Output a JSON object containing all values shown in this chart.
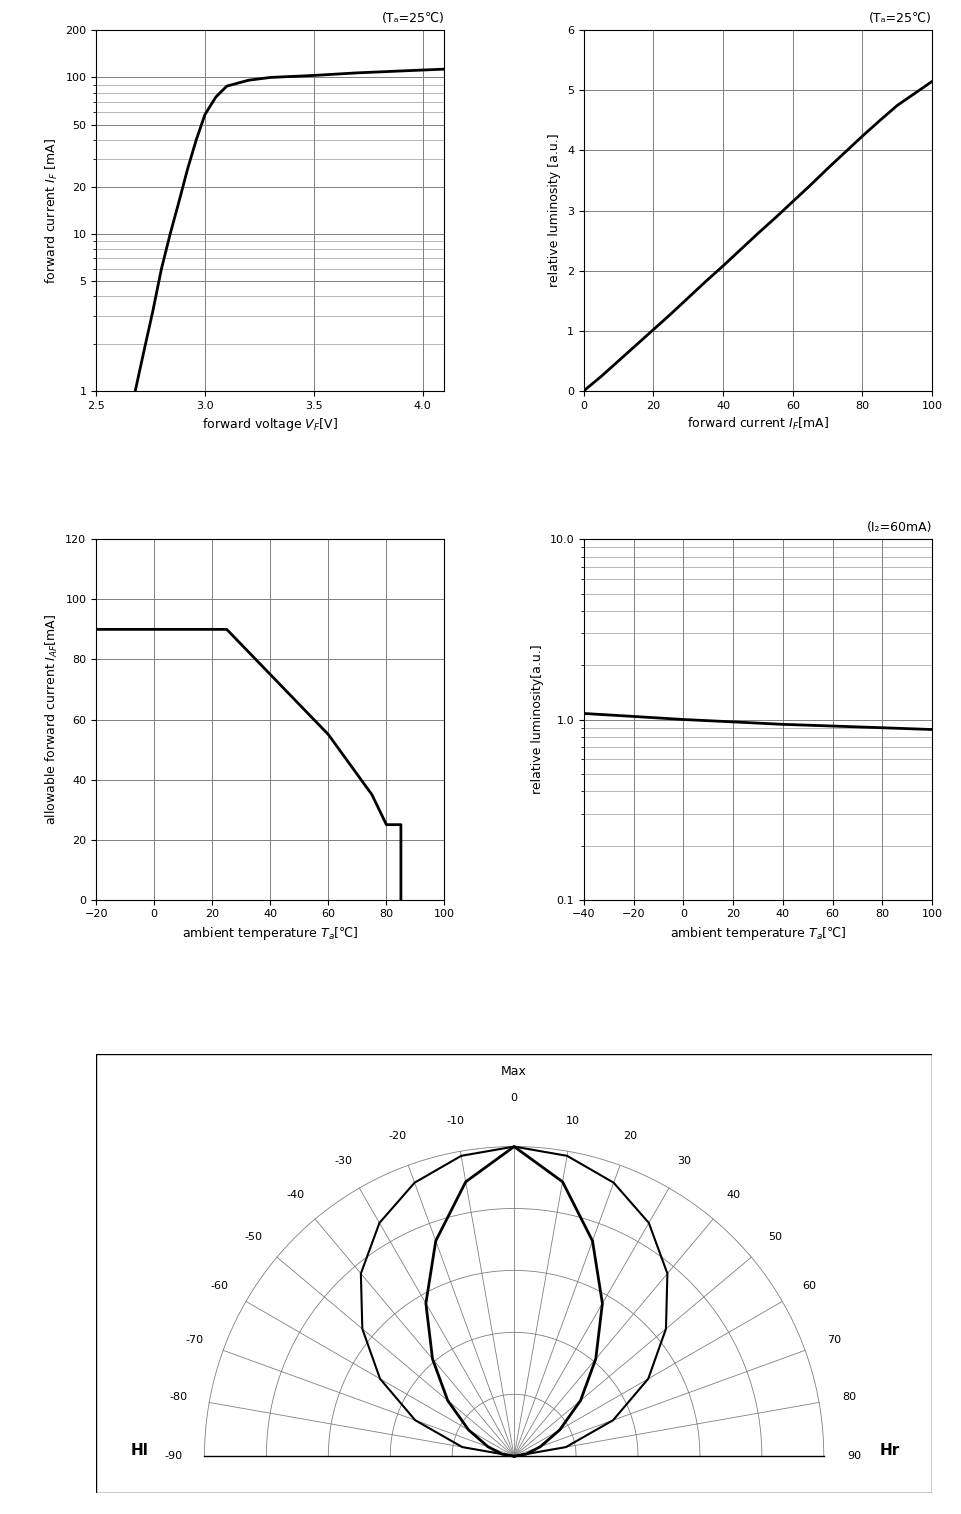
{
  "fig_width": 9.61,
  "fig_height": 15.14,
  "bg_color": "#ffffff",
  "plot1": {
    "title": "(Tₐ=25℃)",
    "xlabel": "forward voltage V₁[V]",
    "ylabel": "forward current I₂ [mA]",
    "xlim": [
      2.5,
      4.1
    ],
    "ylim_log": [
      1,
      200
    ],
    "xticks": [
      2.5,
      3.0,
      3.5,
      4.0
    ],
    "yticks_log": [
      1,
      5,
      10,
      20,
      50,
      100,
      200
    ],
    "curve_x": [
      2.68,
      2.72,
      2.76,
      2.8,
      2.84,
      2.88,
      2.92,
      2.96,
      3.0,
      3.05,
      3.1,
      3.2,
      3.3,
      3.5,
      3.7,
      3.9,
      4.1
    ],
    "curve_y": [
      1.0,
      1.8,
      3.2,
      6.0,
      10.0,
      16.0,
      26.0,
      40.0,
      58.0,
      75.0,
      88.0,
      96.0,
      100.0,
      103.0,
      107.0,
      110.0,
      113.0
    ]
  },
  "plot2": {
    "title": "(Tₐ=25℃)",
    "xlabel": "forward current I₂[mA]",
    "ylabel": "relative luminosity [a.u.]",
    "xlim": [
      0,
      100
    ],
    "ylim": [
      0,
      6.0
    ],
    "xticks": [
      0,
      20,
      40,
      60,
      80,
      100
    ],
    "yticks": [
      0,
      1.0,
      2.0,
      3.0,
      4.0,
      5.0,
      6.0
    ],
    "curve_x": [
      0,
      5,
      10,
      15,
      20,
      25,
      30,
      35,
      40,
      45,
      50,
      55,
      60,
      65,
      70,
      75,
      80,
      85,
      90,
      95,
      100
    ],
    "curve_y": [
      0.0,
      0.24,
      0.5,
      0.76,
      1.02,
      1.28,
      1.55,
      1.82,
      2.08,
      2.35,
      2.62,
      2.88,
      3.15,
      3.42,
      3.7,
      3.97,
      4.24,
      4.5,
      4.75,
      4.95,
      5.15
    ]
  },
  "plot3": {
    "xlabel": "ambient temperature Tₐ[℃]",
    "ylabel": "allowable forward current I₁₂[mA]",
    "xlim": [
      -20,
      100
    ],
    "ylim": [
      0,
      120
    ],
    "xticks": [
      -20,
      0,
      20,
      40,
      60,
      80,
      100
    ],
    "yticks": [
      0,
      20,
      40,
      60,
      80,
      100,
      120
    ],
    "curve_x": [
      -20,
      25,
      25,
      60,
      75,
      80,
      85,
      85
    ],
    "curve_y": [
      90,
      90,
      90,
      55,
      35,
      25,
      25,
      0
    ]
  },
  "plot4": {
    "title": "(I₂=60mA)",
    "xlabel": "ambient temperature Tₐ[℃]",
    "ylabel": "relative luminosity[a.u.]",
    "xlim": [
      -40,
      100
    ],
    "ylim_log": [
      0.1,
      10
    ],
    "xticks": [
      -40,
      -20,
      0,
      20,
      40,
      60,
      80,
      100
    ],
    "yticks_log": [
      0.1,
      1,
      10
    ],
    "curve_x": [
      -40,
      -20,
      0,
      20,
      40,
      60,
      80,
      100
    ],
    "curve_y": [
      1.08,
      1.04,
      1.0,
      0.97,
      0.94,
      0.92,
      0.9,
      0.88
    ]
  },
  "plot5": {
    "r_outer_angles": [
      -90,
      -80,
      -70,
      -60,
      -50,
      -40,
      -30,
      -20,
      -10,
      0,
      10,
      20,
      30,
      40,
      50,
      60,
      70,
      80,
      90
    ],
    "r_outer": [
      0.0,
      0.17,
      0.34,
      0.5,
      0.64,
      0.77,
      0.87,
      0.94,
      0.985,
      1.0,
      0.985,
      0.94,
      0.87,
      0.77,
      0.64,
      0.5,
      0.34,
      0.17,
      0.0
    ],
    "r_inner_angles": [
      -90,
      -80,
      -70,
      -60,
      -50,
      -40,
      -30,
      -20,
      -10,
      0,
      10,
      20,
      30,
      40,
      50,
      60,
      70,
      80,
      90
    ],
    "r_inner": [
      0.0,
      0.04,
      0.09,
      0.17,
      0.28,
      0.41,
      0.57,
      0.74,
      0.9,
      1.0,
      0.9,
      0.74,
      0.57,
      0.41,
      0.28,
      0.17,
      0.09,
      0.04,
      0.0
    ],
    "hl_label": "Hl",
    "hr_label": "Hr",
    "max_label": "Max",
    "r_circles": [
      0.2,
      0.4,
      0.6,
      0.8,
      1.0
    ],
    "angle_lines": [
      -90,
      -80,
      -70,
      -60,
      -50,
      -40,
      -30,
      -20,
      -10,
      0,
      10,
      20,
      30,
      40,
      50,
      60,
      70,
      80,
      90
    ]
  }
}
